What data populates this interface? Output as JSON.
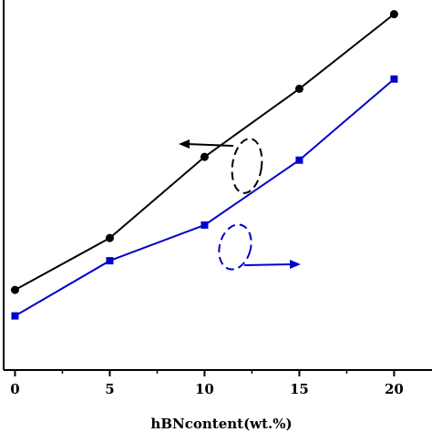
{
  "chart_data": {
    "type": "line",
    "title": "",
    "xlabel": "hBNcontent(wt.%)",
    "ylabel": "",
    "x": [
      0,
      5,
      10,
      15,
      20
    ],
    "xticks": [
      "0",
      "5",
      "10",
      "15",
      "20"
    ],
    "xlim": [
      -0.6,
      22
    ],
    "ylim": [
      0,
      1
    ],
    "grid": false,
    "series": [
      {
        "marker": "circle",
        "color": "#000000",
        "axis": "left",
        "values": [
          0.23,
          0.39,
          0.64,
          0.85,
          1.08
        ]
      },
      {
        "marker": "square",
        "color": "#0000cc",
        "axis": "right",
        "values": [
          0.15,
          0.32,
          0.43,
          0.63,
          0.88
        ]
      }
    ],
    "annotations": [
      {
        "kind": "arrow",
        "direction": "left",
        "series": 0,
        "meaning": "left axis"
      },
      {
        "kind": "arrow",
        "direction": "right",
        "series": 1,
        "meaning": "right axis"
      }
    ]
  }
}
